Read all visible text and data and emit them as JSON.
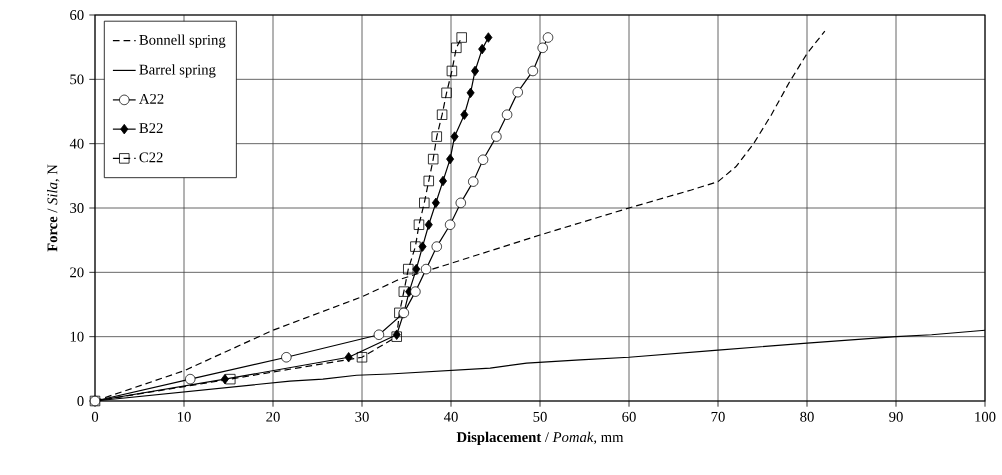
{
  "chart_data": {
    "type": "line",
    "xlabel": "**Displacement** / *Pomak,* mm",
    "ylabel": "**Force** / *Sila*, N",
    "xlim": [
      0,
      100
    ],
    "xticks": [
      0,
      10,
      20,
      30,
      40,
      50,
      60,
      70,
      80,
      90,
      100
    ],
    "ylim": [
      0,
      60
    ],
    "yticks": [
      0,
      10,
      20,
      30,
      40,
      50,
      60
    ],
    "grid": true,
    "legend": "top left",
    "series": [
      {
        "name": "Bonnell spring",
        "color": "#000000",
        "line_style": "dashed",
        "marker": "none",
        "x": [
          0,
          10,
          20,
          30,
          34,
          40,
          50,
          60,
          67,
          70,
          72,
          74,
          76,
          78,
          80,
          82
        ],
        "values": [
          0,
          4.7,
          11,
          16.2,
          18.8,
          21.4,
          25.8,
          30,
          32.8,
          34.1,
          36.4,
          40,
          44.5,
          49.5,
          54,
          57.5
        ]
      },
      {
        "name": "Barrel spring",
        "color": "#000000",
        "line_style": "solid",
        "marker": "none",
        "x": [
          0,
          21.9,
          25.6,
          29.4,
          33.1,
          44.4,
          48.5,
          54.5,
          60,
          70,
          80,
          90,
          94,
          100
        ],
        "values": [
          0,
          3.1,
          3.4,
          4,
          4.2,
          5.1,
          5.9,
          6.4,
          6.8,
          7.9,
          9,
          10,
          10.3,
          11
        ]
      },
      {
        "name": "A22",
        "color": "#000000",
        "line_style": "solid",
        "marker": "circle",
        "x": [
          0,
          10.7,
          21.5,
          31.9,
          34.7,
          36,
          37.2,
          38.4,
          39.9,
          41.1,
          42.5,
          43.6,
          45.1,
          46.3,
          47.5,
          49.2,
          50.3,
          50.9
        ],
        "values": [
          0,
          3.4,
          6.8,
          10.3,
          13.7,
          17,
          20.5,
          24,
          27.4,
          30.8,
          34.1,
          37.5,
          41.1,
          44.5,
          48,
          51.3,
          54.9,
          56.5
        ]
      },
      {
        "name": "B22",
        "color": "#000000",
        "line_style": "solid",
        "marker": "diamond",
        "x": [
          0,
          14.6,
          28.5,
          33.9,
          34.7,
          35.3,
          36.1,
          36.8,
          37.5,
          38.3,
          39.1,
          39.9,
          40.4,
          41.5,
          42.2,
          42.7,
          43.5,
          44.2
        ],
        "values": [
          0,
          3.4,
          6.8,
          10.3,
          13.7,
          17,
          20.5,
          24,
          27.4,
          30.8,
          34.2,
          37.6,
          41.1,
          44.5,
          47.9,
          51.3,
          54.7,
          56.5
        ]
      },
      {
        "name": "C22",
        "color": "#000000",
        "line_style": "dashed",
        "marker": "square",
        "x": [
          0,
          15.2,
          30,
          33.9,
          34.2,
          34.7,
          35.2,
          36,
          36.4,
          37,
          37.5,
          38,
          38.4,
          39,
          39.5,
          40.1,
          40.6,
          41.2
        ],
        "values": [
          0,
          3.4,
          6.8,
          10,
          13.7,
          17,
          20.5,
          24,
          27.4,
          30.8,
          34.2,
          37.6,
          41.1,
          44.5,
          47.9,
          51.3,
          54.9,
          56.5
        ]
      }
    ]
  }
}
